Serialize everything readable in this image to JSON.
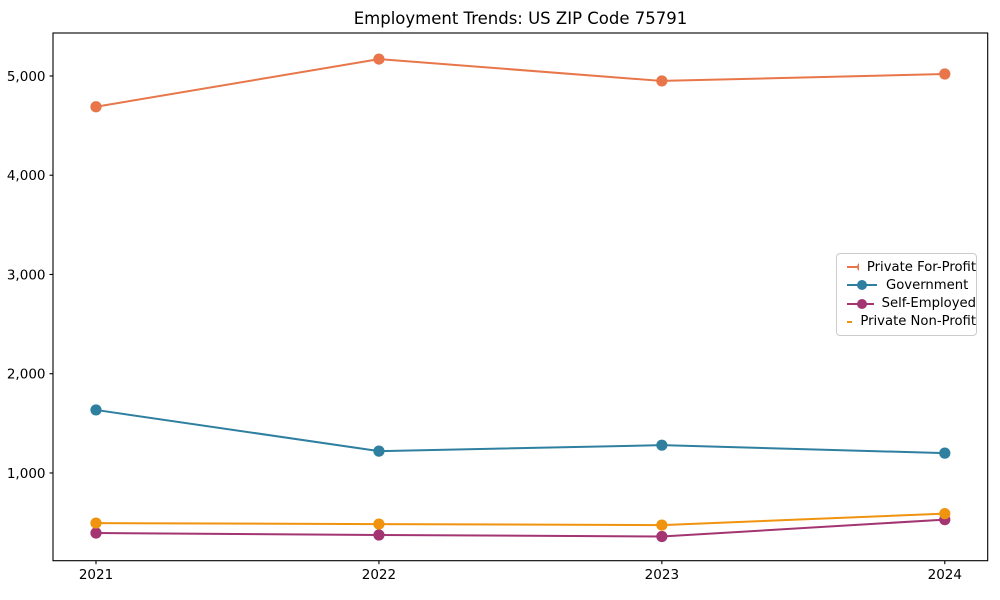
{
  "figure": {
    "background": "#ffffff",
    "text_color": "#000000",
    "axis_color": "#000000"
  },
  "chart_data": {
    "type": "line",
    "title": "Employment Trends: US ZIP Code 75791",
    "xlabel": "",
    "ylabel": "",
    "grid": false,
    "legend_position": "center-right",
    "categories": [
      "2021",
      "2022",
      "2023",
      "2024"
    ],
    "series": [
      {
        "name": "Private For-Profit",
        "color": "#e8764a",
        "values": [
          4690,
          5170,
          4950,
          5020
        ]
      },
      {
        "name": "Government",
        "color": "#2e7fa0",
        "values": [
          1635,
          1220,
          1280,
          1200
        ]
      },
      {
        "name": "Self-Employed",
        "color": "#a23572",
        "values": [
          395,
          375,
          360,
          530
        ]
      },
      {
        "name": "Private Non-Profit",
        "color": "#f0930e",
        "values": [
          495,
          485,
          475,
          590
        ]
      }
    ],
    "ylim": [
      116,
      5433
    ],
    "yticks": [
      {
        "value": 1000,
        "label": "1,000"
      },
      {
        "value": 2000,
        "label": "2,000"
      },
      {
        "value": 3000,
        "label": "3,000"
      },
      {
        "value": 4000,
        "label": "4,000"
      },
      {
        "value": 5000,
        "label": "5,000"
      }
    ]
  }
}
